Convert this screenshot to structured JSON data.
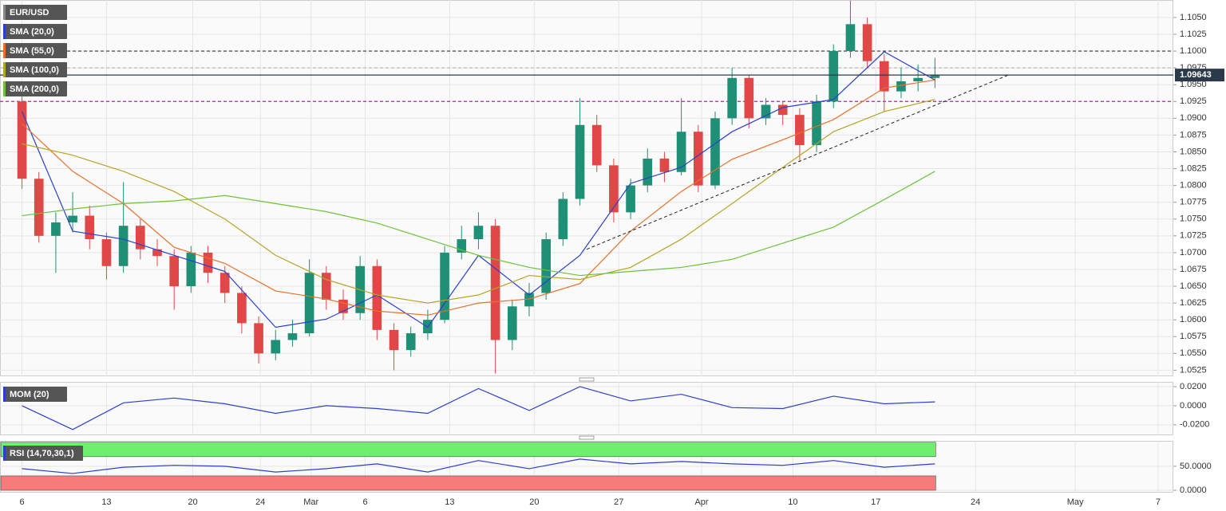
{
  "chart_data": [
    {
      "type": "candlestick",
      "symbol": "EUR/USD",
      "up_color": "#1f8f75",
      "down_color": "#e04848",
      "xlim": [
        -1.3,
        68.1
      ],
      "ylim": [
        1.0516,
        1.1076
      ],
      "yticks": [
        {
          "value": 1.0525,
          "label": "1.0525"
        },
        {
          "value": 1.055,
          "label": "1.0550"
        },
        {
          "value": 1.0575,
          "label": "1.0575"
        },
        {
          "value": 1.06,
          "label": "1.0600"
        },
        {
          "value": 1.0625,
          "label": "1.0625"
        },
        {
          "value": 1.065,
          "label": "1.0650"
        },
        {
          "value": 1.0675,
          "label": "1.0675"
        },
        {
          "value": 1.07,
          "label": "1.0700"
        },
        {
          "value": 1.0725,
          "label": "1.0725"
        },
        {
          "value": 1.075,
          "label": "1.0750"
        },
        {
          "value": 1.0775,
          "label": "1.0775"
        },
        {
          "value": 1.08,
          "label": "1.0800"
        },
        {
          "value": 1.0825,
          "label": "1.0825"
        },
        {
          "value": 1.085,
          "label": "1.0850"
        },
        {
          "value": 1.0875,
          "label": "1.0875"
        },
        {
          "value": 1.09,
          "label": "1.0900"
        },
        {
          "value": 1.0925,
          "label": "1.0925"
        },
        {
          "value": 1.095,
          "label": "1.0950"
        },
        {
          "value": 1.0975,
          "label": "1.0975"
        },
        {
          "value": 1.1,
          "label": "1.1000"
        },
        {
          "value": 1.1025,
          "label": "1.1025"
        },
        {
          "value": 1.105,
          "label": "1.1050"
        }
      ],
      "x": [
        0,
        1,
        2,
        3,
        4,
        5,
        6,
        7,
        8,
        9,
        10,
        11,
        12,
        13,
        14,
        15,
        16,
        17,
        18,
        19,
        20,
        21,
        22,
        23,
        24,
        25,
        26,
        27,
        28,
        29,
        30,
        31,
        32,
        33,
        34,
        35,
        36,
        37,
        38,
        39,
        40,
        41,
        42,
        43,
        44,
        45,
        46,
        47,
        48,
        49,
        50,
        51,
        52,
        53,
        54
      ],
      "open": [
        1.0925,
        1.081,
        1.0725,
        1.0745,
        1.0755,
        1.072,
        1.068,
        1.074,
        1.0705,
        1.0695,
        1.065,
        1.07,
        1.067,
        1.064,
        1.0595,
        1.055,
        1.057,
        1.058,
        1.067,
        1.063,
        1.061,
        1.068,
        1.0585,
        1.0555,
        1.058,
        1.06,
        1.07,
        1.072,
        1.074,
        1.057,
        1.062,
        1.064,
        1.072,
        1.078,
        1.089,
        1.083,
        1.076,
        1.08,
        1.084,
        1.082,
        1.088,
        1.08,
        1.09,
        1.096,
        1.09,
        1.092,
        1.0905,
        1.086,
        1.0925,
        1.1,
        1.104,
        1.0985,
        1.094,
        1.0955,
        1.096
      ],
      "high": [
        1.0935,
        1.082,
        1.076,
        1.079,
        1.077,
        1.073,
        1.0805,
        1.075,
        1.072,
        1.0705,
        1.071,
        1.071,
        1.068,
        1.065,
        1.0605,
        1.0585,
        1.06,
        1.069,
        1.068,
        1.0645,
        1.0695,
        1.069,
        1.0595,
        1.059,
        1.0615,
        1.071,
        1.074,
        1.076,
        1.075,
        1.063,
        1.0655,
        1.073,
        1.079,
        1.093,
        1.0905,
        1.084,
        1.081,
        1.0855,
        1.085,
        1.093,
        1.089,
        1.091,
        1.0975,
        1.0965,
        1.093,
        1.0925,
        1.0915,
        1.0935,
        1.101,
        1.1075,
        1.105,
        1.0995,
        1.0975,
        1.098,
        1.099
      ],
      "low": [
        1.0795,
        1.0715,
        1.067,
        1.073,
        1.0705,
        1.066,
        1.067,
        1.069,
        1.068,
        1.0615,
        1.064,
        1.0655,
        1.0625,
        1.058,
        1.0535,
        1.054,
        1.056,
        1.0575,
        1.0615,
        1.06,
        1.06,
        1.057,
        1.0525,
        1.0545,
        1.057,
        1.0595,
        1.069,
        1.0705,
        1.052,
        1.0555,
        1.0605,
        1.063,
        1.071,
        1.077,
        1.082,
        1.0745,
        1.075,
        1.079,
        1.0805,
        1.0815,
        1.079,
        1.0795,
        1.089,
        1.0885,
        1.089,
        1.089,
        1.0835,
        1.085,
        1.0915,
        1.099,
        1.0975,
        1.091,
        1.093,
        1.094,
        1.0945
      ],
      "close": [
        1.081,
        1.0725,
        1.0745,
        1.0755,
        1.072,
        1.068,
        1.074,
        1.0705,
        1.0695,
        1.065,
        1.07,
        1.067,
        1.064,
        1.0595,
        1.055,
        1.057,
        1.058,
        1.067,
        1.063,
        1.061,
        1.068,
        1.0585,
        1.0555,
        1.058,
        1.06,
        1.07,
        1.072,
        1.074,
        1.057,
        1.062,
        1.064,
        1.072,
        1.078,
        1.089,
        1.083,
        1.076,
        1.08,
        1.084,
        1.082,
        1.088,
        1.08,
        1.09,
        1.096,
        1.09,
        1.092,
        1.0905,
        1.086,
        1.0925,
        1.1,
        1.104,
        1.0985,
        1.094,
        1.0955,
        1.096,
        1.09643
      ],
      "series": [
        {
          "name": "SMA (20,0)",
          "color": "#2a3fd0",
          "x": [
            0,
            3,
            6,
            9,
            12,
            15,
            18,
            21,
            24,
            27,
            30,
            33,
            36,
            39,
            42,
            45,
            48,
            51,
            54
          ],
          "values": [
            1.091,
            1.0732,
            1.072,
            1.0696,
            1.0672,
            1.0589,
            1.0601,
            1.0637,
            1.0589,
            1.0696,
            1.0637,
            1.0696,
            1.0803,
            1.0827,
            1.088,
            1.0916,
            1.0928,
            1.0999,
            1.0957
          ]
        },
        {
          "name": "SMA (55,0)",
          "color": "#e8702a",
          "x": [
            0,
            3,
            6,
            9,
            12,
            15,
            18,
            21,
            24,
            27,
            30,
            33,
            36,
            39,
            42,
            45,
            48,
            51,
            54
          ],
          "values": [
            1.0892,
            1.0821,
            1.0773,
            1.0708,
            1.0684,
            1.0643,
            1.0631,
            1.0613,
            1.0607,
            1.0625,
            1.0631,
            1.0654,
            1.0732,
            1.0791,
            1.0839,
            1.0868,
            1.0898,
            1.0945,
            1.0957
          ]
        },
        {
          "name": "SMA (100,0)",
          "color": "#b3a628",
          "x": [
            0,
            3,
            6,
            9,
            12,
            15,
            18,
            21,
            24,
            27,
            30,
            33,
            36,
            39,
            42,
            45,
            48,
            51,
            54
          ],
          "values": [
            1.0862,
            1.0845,
            1.0821,
            1.0791,
            1.075,
            1.0696,
            1.066,
            1.0637,
            1.0625,
            1.0637,
            1.0666,
            1.066,
            1.0678,
            1.072,
            1.0773,
            1.0827,
            1.088,
            1.091,
            1.0928
          ]
        },
        {
          "name": "SMA (200,0)",
          "color": "#6cc23a",
          "x": [
            0,
            3,
            6,
            9,
            12,
            15,
            18,
            21,
            24,
            27,
            30,
            33,
            36,
            39,
            42,
            45,
            48,
            51,
            54
          ],
          "values": [
            1.0755,
            1.0765,
            1.0773,
            1.0777,
            1.0785,
            1.0773,
            1.0761,
            1.0744,
            1.072,
            1.0696,
            1.0678,
            1.0666,
            1.0672,
            1.0678,
            1.069,
            1.0714,
            1.0738,
            1.0779,
            1.0821
          ]
        }
      ],
      "levels": [
        {
          "value": 1.1,
          "color": "#333333",
          "dash": true
        },
        {
          "value": 1.0975,
          "color": "#bbbbbb",
          "dash": true
        },
        {
          "value": 1.0925,
          "color": "#b020b0",
          "dash": true
        }
      ],
      "trendline": {
        "x": [
          33.4,
          58.4
        ],
        "values": [
          1.0705,
          1.0965
        ],
        "color": "#222222"
      },
      "last": 1.09643,
      "last_color": "#2b3a4a"
    },
    {
      "type": "line",
      "title": "MOM (20)",
      "xlim": [
        -1.3,
        68.1
      ],
      "ylim": [
        -0.031,
        0.025
      ],
      "yticks": [
        {
          "value": 0.02,
          "label": "0.0200"
        },
        {
          "value": 0,
          "label": "0.0000"
        },
        {
          "value": -0.02,
          "label": "-0.0200"
        }
      ],
      "series": [
        {
          "color": "#2a3fd0",
          "x": [
            0,
            3,
            6,
            9,
            12,
            15,
            18,
            21,
            24,
            27,
            30,
            33,
            36,
            39,
            42,
            45,
            48,
            51,
            54
          ],
          "values": [
            0,
            -0.025,
            0.003,
            0.008,
            0.002,
            -0.008,
            0,
            -0.003,
            -0.008,
            0.018,
            -0.005,
            0.02,
            0.005,
            0.012,
            -0.002,
            -0.003,
            0.01,
            0.002,
            0.004
          ]
        }
      ]
    },
    {
      "type": "line",
      "title": "RSI (14,70,30,1)",
      "xlim": [
        -1.3,
        68.1
      ],
      "ylim": [
        -5,
        103
      ],
      "yticks": [
        {
          "value": 50,
          "label": "50.0000"
        },
        {
          "value": 0,
          "label": "0.0000"
        }
      ],
      "bands": [
        {
          "from": 70,
          "to": 100,
          "color": "#6ef06e"
        },
        {
          "from": 0,
          "to": 30,
          "color": "#f77b7b"
        }
      ],
      "series": [
        {
          "color": "#2a3fd0",
          "x": [
            0,
            3,
            6,
            9,
            12,
            15,
            18,
            21,
            24,
            27,
            30,
            33,
            36,
            39,
            42,
            45,
            48,
            51,
            54
          ],
          "values": [
            45,
            35,
            48,
            52,
            50,
            38,
            45,
            55,
            38,
            62,
            45,
            65,
            55,
            60,
            55,
            52,
            62,
            48,
            55
          ]
        }
      ],
      "xticks": [
        {
          "value": 0,
          "label": "6"
        },
        {
          "value": 5,
          "label": "13"
        },
        {
          "value": 10.1,
          "label": "20"
        },
        {
          "value": 14.1,
          "label": "24"
        },
        {
          "value": 17.1,
          "label": "Mar"
        },
        {
          "value": 20.3,
          "label": "6"
        },
        {
          "value": 25.3,
          "label": "13"
        },
        {
          "value": 30.3,
          "label": "20"
        },
        {
          "value": 35.3,
          "label": "27"
        },
        {
          "value": 40.2,
          "label": "Apr"
        },
        {
          "value": 45.6,
          "label": "10"
        },
        {
          "value": 50.5,
          "label": "17"
        },
        {
          "value": 56.4,
          "label": "24"
        },
        {
          "value": 62.3,
          "label": "May"
        },
        {
          "value": 67.2,
          "label": "7"
        }
      ]
    }
  ]
}
